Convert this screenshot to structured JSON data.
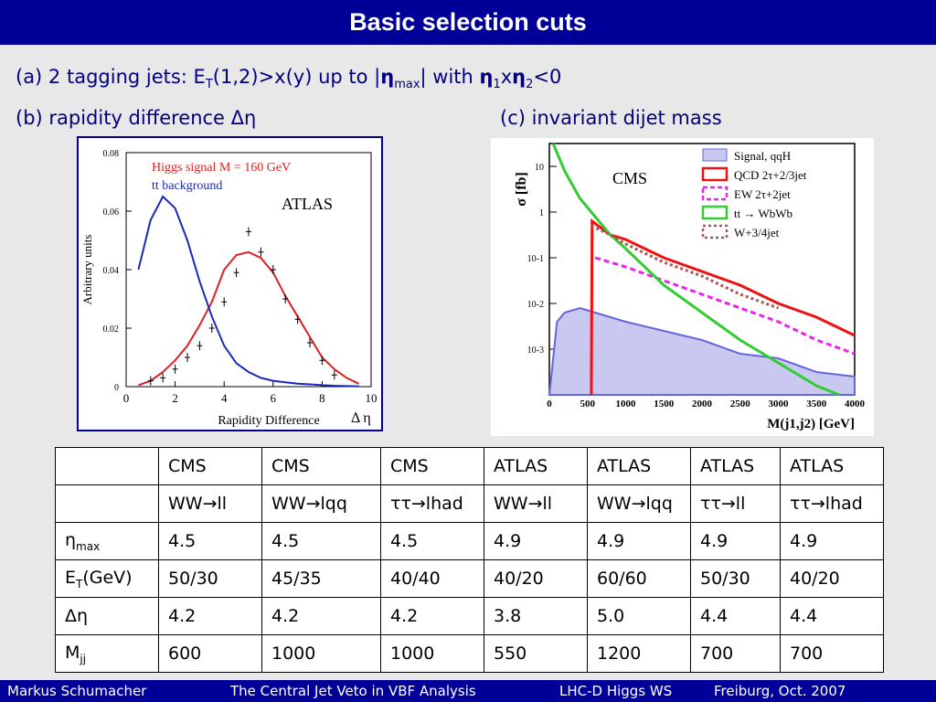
{
  "title": "Basic selection cuts",
  "lines": {
    "a_prefix": "(a) 2 tagging jets:  E",
    "a_sub_t": "T",
    "a_mid": "(1,2)>x(y) up to |",
    "a_eta": "η",
    "a_sub_max": "max",
    "a_with": "| with ",
    "a_eta1": "η",
    "a_sub_1": "1",
    "a_x": "x",
    "a_eta2": "η",
    "a_sub_2": "2",
    "a_end": "<0",
    "b": "(b) rapidity difference Δη",
    "c": "(c) invariant dijet mass"
  },
  "chart_data": [
    {
      "type": "line",
      "title": "",
      "experiment_label": "ATLAS",
      "xlabel": "Rapidity Difference",
      "xlabel_symbol": "Δ η",
      "ylabel": "Arbitrary units",
      "xlim": [
        0,
        10
      ],
      "ylim": [
        0,
        0.08
      ],
      "x_ticks": [
        "0",
        "2",
        "4",
        "6",
        "8",
        "10"
      ],
      "y_ticks": [
        "0",
        "0.02",
        "0.04",
        "0.06",
        "0.08"
      ],
      "legend": [
        "Higgs signal   M = 160 GeV",
        "tt background"
      ],
      "series": [
        {
          "name": "Higgs signal   M = 160 GeV",
          "color": "#e02020",
          "x": [
            0.5,
            1.0,
            1.5,
            2.0,
            2.5,
            3.0,
            3.5,
            4.0,
            4.5,
            5.0,
            5.5,
            6.0,
            6.5,
            7.0,
            7.5,
            8.0,
            8.5,
            9.0,
            9.5
          ],
          "values": [
            0.0005,
            0.002,
            0.005,
            0.009,
            0.014,
            0.021,
            0.029,
            0.04,
            0.045,
            0.046,
            0.044,
            0.039,
            0.031,
            0.024,
            0.017,
            0.01,
            0.006,
            0.003,
            0.001
          ]
        },
        {
          "name": "tt background",
          "color": "#1a2ab8",
          "x": [
            0.5,
            1.0,
            1.5,
            2.0,
            2.5,
            3.0,
            3.5,
            4.0,
            4.5,
            5.0,
            5.5,
            6.0,
            6.5,
            7.0,
            7.5,
            8.0,
            8.5,
            9.0,
            9.5
          ],
          "values": [
            0.04,
            0.057,
            0.065,
            0.061,
            0.05,
            0.036,
            0.024,
            0.014,
            0.008,
            0.005,
            0.003,
            0.002,
            0.0015,
            0.001,
            0.0008,
            0.0005,
            0.0003,
            0.0002,
            0.0001
          ]
        },
        {
          "name": "",
          "color": "#000000",
          "marker": "crosses",
          "x": [
            1.0,
            1.5,
            2.0,
            2.5,
            3.0,
            3.5,
            4.0,
            4.5,
            5.0,
            5.5,
            6.0,
            6.5,
            7.0,
            7.5,
            8.0,
            8.5
          ],
          "values": [
            0.002,
            0.003,
            0.006,
            0.01,
            0.014,
            0.02,
            0.029,
            0.039,
            0.053,
            0.046,
            0.04,
            0.03,
            0.023,
            0.015,
            0.009,
            0.004
          ]
        }
      ]
    },
    {
      "type": "line",
      "title": "",
      "experiment_label": "CMS",
      "xlabel": "M(j1,j2) [GeV]",
      "ylabel": "σ [fb]",
      "ylog": true,
      "xlim": [
        0,
        4000
      ],
      "ylim_exp": [
        -4,
        1.5
      ],
      "x_ticks": [
        "0",
        "500",
        "1000",
        "1500",
        "2000",
        "2500",
        "3000",
        "3500",
        "4000"
      ],
      "y_ticks": [
        "10",
        "1",
        "10-1",
        "10-2",
        "10-3"
      ],
      "legend_position": "top-right",
      "legend": [
        "Signal, qqH",
        "QCD 2τ+2/3jet",
        "EW 2τ+2jet",
        "tt → WbWb",
        "W+3/4jet"
      ],
      "series": [
        {
          "name": "Signal, qqH",
          "color": "#6666dd",
          "x": [
            0,
            100,
            200,
            400,
            600,
            800,
            1000,
            1500,
            2000,
            2500,
            3000,
            3500,
            4000
          ],
          "values": [
            -4.0,
            -2.4,
            -2.2,
            -2.1,
            -2.2,
            -2.3,
            -2.4,
            -2.6,
            -2.8,
            -3.1,
            -3.2,
            -3.5,
            -3.6
          ]
        },
        {
          "name": "QCD 2τ+2/3jet",
          "color": "#ee1111",
          "x": [
            550,
            560,
            800,
            1000,
            1500,
            2000,
            2500,
            3000,
            3500,
            4000
          ],
          "values": [
            -4.0,
            -0.2,
            -0.5,
            -0.6,
            -1.0,
            -1.3,
            -1.6,
            -2.0,
            -2.3,
            -2.7
          ]
        },
        {
          "name": "EW 2τ+2jet",
          "color": "#ee22ee",
          "x": [
            600,
            800,
            1000,
            1500,
            2000,
            2500,
            3000,
            3500,
            4000
          ],
          "values": [
            -1.0,
            -1.1,
            -1.2,
            -1.5,
            -1.8,
            -2.1,
            -2.4,
            -2.8,
            -3.1
          ]
        },
        {
          "name": "tt → WbWb",
          "color": "#33cc33",
          "x": [
            50,
            200,
            400,
            600,
            800,
            1000,
            1500,
            2000,
            2500,
            3000,
            3500,
            3800
          ],
          "values": [
            1.5,
            0.9,
            0.3,
            -0.1,
            -0.5,
            -0.8,
            -1.6,
            -2.2,
            -2.8,
            -3.3,
            -3.8,
            -4.0
          ]
        },
        {
          "name": "W+3/4jet",
          "color": "#aa5555",
          "x": [
            550,
            800,
            1000,
            1500,
            2000,
            2500,
            3000
          ],
          "values": [
            -0.3,
            -0.5,
            -0.7,
            -1.1,
            -1.4,
            -1.8,
            -2.1
          ]
        }
      ]
    }
  ],
  "table": {
    "rows": [
      {
        "label": "",
        "cells": [
          "CMS",
          "CMS",
          "CMS",
          "ATLAS",
          "ATLAS",
          "ATLAS",
          "ATLAS"
        ]
      },
      {
        "label": "",
        "cells": [
          "WW→ll",
          "WW→lqq",
          "ττ→lhad",
          "WW→ll",
          "WW→lqq",
          "ττ→ll",
          "ττ→lhad"
        ]
      },
      {
        "label": "η",
        "label_sub": "max",
        "cells": [
          "4.5",
          "4.5",
          "4.5",
          "4.9",
          "4.9",
          "4.9",
          "4.9"
        ]
      },
      {
        "label": "E",
        "label_sub": "T",
        "label_suffix": "(GeV)",
        "cells": [
          "50/30",
          "45/35",
          "40/40",
          "40/20",
          "60/60",
          "50/30",
          "40/20"
        ]
      },
      {
        "label": "Δη",
        "cells": [
          "4.2",
          "4.2",
          "4.2",
          "3.8",
          "5.0",
          "4.4",
          "4.4"
        ]
      },
      {
        "label": "M",
        "label_sub": "jj",
        "cells": [
          "600",
          "1000",
          "1000",
          "550",
          "1200",
          "700",
          "700"
        ]
      }
    ]
  },
  "footer": {
    "author": "Markus  Schumacher",
    "talk": "The Central Jet Veto in VBF Analysis",
    "venue": "LHC-D Higgs WS",
    "place": "Freiburg, Oct. 2007"
  }
}
